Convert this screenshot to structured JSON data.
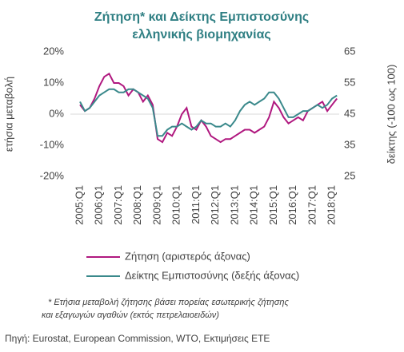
{
  "chart_data": {
    "type": "line",
    "title": [
      "Ζήτηση* και Δείκτης Εμπιστοσύνης",
      "ελληνικής βιομηχανίας"
    ],
    "y_label": "ετήσια μεταβολή",
    "y2_label": "δείκτης (-100 ως 100)",
    "categories": [
      "2005:Q1",
      null,
      null,
      null,
      "2006:Q1",
      null,
      null,
      null,
      "2007:Q1",
      null,
      null,
      null,
      "2008:Q1",
      null,
      null,
      null,
      "2009:Q1",
      null,
      null,
      null,
      "2010:Q1",
      null,
      null,
      null,
      "2011:Q1",
      null,
      null,
      null,
      "2012:Q1",
      null,
      null,
      null,
      "2013:Q1",
      null,
      null,
      null,
      "2014:Q1",
      null,
      null,
      null,
      "2015:Q1",
      null,
      null,
      null,
      "2016:Q1",
      null,
      null,
      null,
      "2017:Q1",
      null,
      null,
      null,
      "2018:Q1",
      null
    ],
    "series": [
      {
        "name": "Ζήτηση (αριστερός άξονας)",
        "color": "#b0187f",
        "values": [
          3,
          1,
          2,
          5,
          9,
          12,
          13,
          10,
          10,
          9,
          6,
          8,
          7,
          4,
          6,
          3,
          -8,
          -9,
          -6,
          -7,
          -4,
          0,
          2,
          -4,
          -5,
          -2,
          -4,
          -7,
          -8,
          -9,
          -8,
          -8,
          -7,
          -6,
          -5,
          -5,
          -6,
          -5,
          -4,
          -1,
          4,
          2,
          -1,
          -3,
          -2,
          -1,
          -2,
          1,
          2,
          3,
          4,
          1,
          3,
          5
        ]
      },
      {
        "name": "Δείκτης Εμπιστοσύνης (δεξής άξονας)",
        "color": "#3a898b",
        "axis": "y2",
        "values": [
          49,
          46,
          47,
          49,
          51,
          52,
          53,
          53,
          52,
          52,
          53,
          53,
          52,
          51,
          50,
          47,
          38,
          38,
          40,
          41,
          41,
          42,
          41,
          40,
          41,
          43,
          42,
          42,
          41,
          41,
          42,
          41,
          43,
          46,
          48,
          49,
          48,
          49,
          50,
          52,
          52,
          50,
          47,
          44,
          44,
          45,
          46,
          46,
          47,
          48,
          47,
          48,
          50,
          51
        ]
      }
    ],
    "ylim": [
      -20,
      20
    ],
    "yticks": [
      {
        "value": 20,
        "label": "20%"
      },
      {
        "value": 10,
        "label": "10%"
      },
      {
        "value": 0,
        "label": "0%"
      },
      {
        "value": -10,
        "label": "-10%"
      },
      {
        "value": -20,
        "label": "-20%"
      }
    ],
    "y2lim": [
      25,
      65
    ],
    "y2ticks": [
      65,
      55,
      45,
      35,
      25
    ],
    "footnote": [
      "* Ετήσια μεταβολή ζήτησης βάσει πορείας εσωτερικής ζήτησης",
      "και εξαγωγών αγαθών (εκτός πετρελαιοειδών)"
    ],
    "source": "Πηγή: Eurostat, European Commission, WTO, Εκτιμήσεις  ΕΤΕ"
  }
}
